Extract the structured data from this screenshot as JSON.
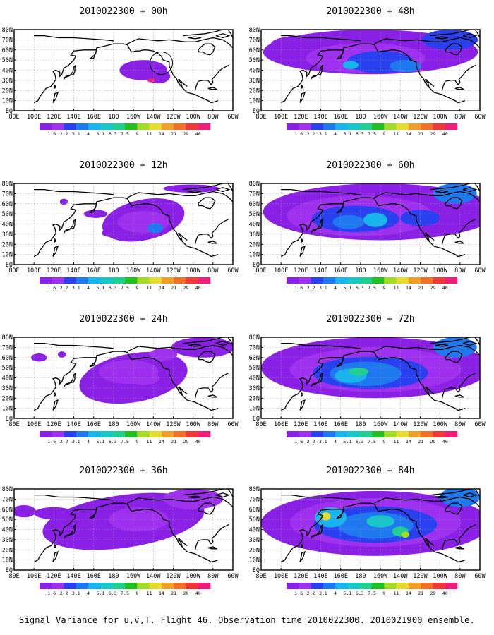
{
  "panels": [
    {
      "title": "2010022300 + 00h"
    },
    {
      "title": "2010022300 + 48h"
    },
    {
      "title": "2010022300 + 12h"
    },
    {
      "title": "2010022300 + 60h"
    },
    {
      "title": "2010022300 + 24h"
    },
    {
      "title": "2010022300 + 72h"
    },
    {
      "title": "2010022300 + 36h"
    },
    {
      "title": "2010022300 + 84h"
    }
  ],
  "axes": {
    "x_ticks": [
      "80E",
      "100E",
      "120E",
      "140E",
      "160E",
      "180",
      "160W",
      "140W",
      "120W",
      "100W",
      "80W",
      "60W"
    ],
    "y_ticks": [
      "EQ",
      "10N",
      "20N",
      "30N",
      "40N",
      "50N",
      "60N",
      "70N",
      "80N"
    ]
  },
  "colorbar": {
    "labels": [
      "1.6",
      "2.2",
      "3.1",
      "4",
      "5.1",
      "6.3",
      "7.5",
      "9",
      "11",
      "14",
      "21",
      "29",
      "40"
    ],
    "colors": [
      "#8a1fe6",
      "#a030f0",
      "#2840f0",
      "#1e78f0",
      "#18b4f0",
      "#18c8c8",
      "#20d090",
      "#20c020",
      "#a0dc28",
      "#e6dc30",
      "#f0a028",
      "#f07028",
      "#f03838",
      "#f01e78"
    ]
  },
  "footer": "Signal Variance for u,v,T. Flight 46. Observation time 2010022300. 2010021900 ensemble."
}
